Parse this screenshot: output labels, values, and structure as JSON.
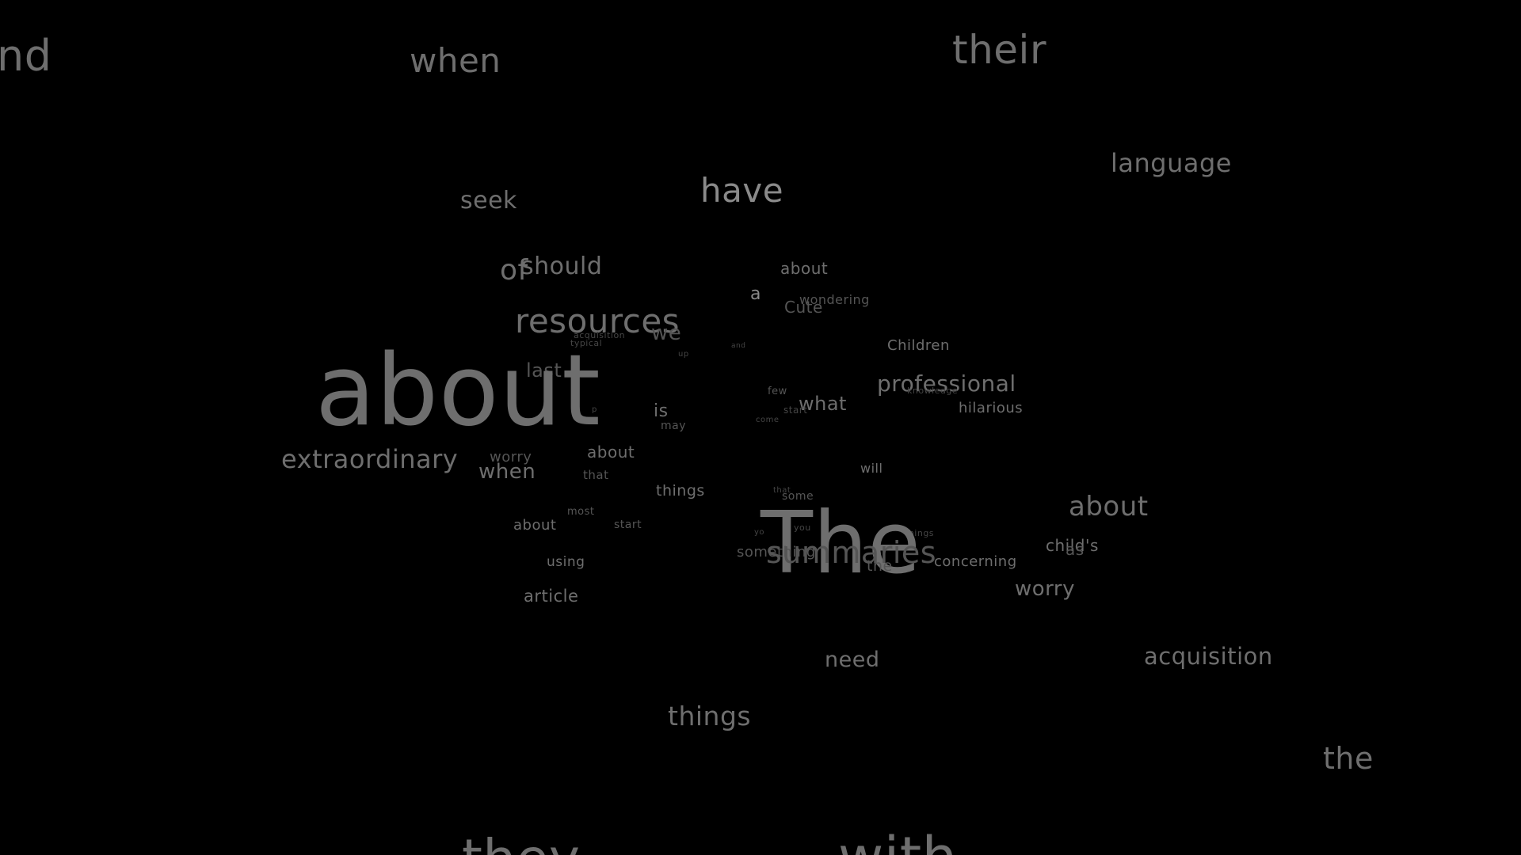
{
  "colors": {
    "background": "#000000",
    "bright": "#8a8a8a",
    "mid": "#6e6e6e",
    "dim": "#555555",
    "faint": "#454545"
  },
  "words": [
    {
      "text": "nd",
      "tone": "mid"
    },
    {
      "text": "when",
      "tone": "mid"
    },
    {
      "text": "their",
      "tone": "mid"
    },
    {
      "text": "language",
      "tone": "mid"
    },
    {
      "text": "seek",
      "tone": "mid"
    },
    {
      "text": "have",
      "tone": "bright"
    },
    {
      "text": "of",
      "tone": "mid"
    },
    {
      "text": "should",
      "tone": "mid"
    },
    {
      "text": "about",
      "tone": "mid"
    },
    {
      "text": "a",
      "tone": "bright"
    },
    {
      "text": "wondering",
      "tone": "dim"
    },
    {
      "text": "Cute",
      "tone": "dim"
    },
    {
      "text": "resources",
      "tone": "mid"
    },
    {
      "text": "we",
      "tone": "dim"
    },
    {
      "text": "acquisition",
      "tone": "faint"
    },
    {
      "text": "typical",
      "tone": "faint"
    },
    {
      "text": "up",
      "tone": "faint"
    },
    {
      "text": "and",
      "tone": "faint"
    },
    {
      "text": "Children",
      "tone": "mid"
    },
    {
      "text": "last",
      "tone": "dim"
    },
    {
      "text": "about",
      "tone": "mid"
    },
    {
      "text": "professional",
      "tone": "mid"
    },
    {
      "text": "knowledge",
      "tone": "faint"
    },
    {
      "text": "few",
      "tone": "dim"
    },
    {
      "text": "what",
      "tone": "mid"
    },
    {
      "text": "start",
      "tone": "faint"
    },
    {
      "text": "hilarious",
      "tone": "mid"
    },
    {
      "text": "is",
      "tone": "mid"
    },
    {
      "text": "may",
      "tone": "dim"
    },
    {
      "text": "come",
      "tone": "faint"
    },
    {
      "text": "p",
      "tone": "faint"
    },
    {
      "text": "extraordinary",
      "tone": "mid"
    },
    {
      "text": "worry",
      "tone": "dim"
    },
    {
      "text": "when",
      "tone": "mid"
    },
    {
      "text": "about",
      "tone": "mid"
    },
    {
      "text": "that",
      "tone": "dim"
    },
    {
      "text": "will",
      "tone": "mid"
    },
    {
      "text": "things",
      "tone": "mid"
    },
    {
      "text": "that",
      "tone": "faint"
    },
    {
      "text": "some",
      "tone": "dim"
    },
    {
      "text": "about",
      "tone": "mid"
    },
    {
      "text": "most",
      "tone": "dim"
    },
    {
      "text": "about",
      "tone": "mid"
    },
    {
      "text": "start",
      "tone": "dim"
    },
    {
      "text": "you",
      "tone": "faint"
    },
    {
      "text": "yo",
      "tone": "faint"
    },
    {
      "text": "things",
      "tone": "faint"
    },
    {
      "text": "The",
      "tone": "mid"
    },
    {
      "text": "summaries",
      "tone": "dim"
    },
    {
      "text": "something",
      "tone": "dim"
    },
    {
      "text": "the",
      "tone": "dim"
    },
    {
      "text": "child's",
      "tone": "mid"
    },
    {
      "text": "as",
      "tone": "dim"
    },
    {
      "text": "using",
      "tone": "mid"
    },
    {
      "text": "concerning",
      "tone": "mid"
    },
    {
      "text": "worry",
      "tone": "mid"
    },
    {
      "text": "article",
      "tone": "mid"
    },
    {
      "text": "need",
      "tone": "mid"
    },
    {
      "text": "acquisition",
      "tone": "mid"
    },
    {
      "text": "things",
      "tone": "mid"
    },
    {
      "text": "the",
      "tone": "mid"
    },
    {
      "text": "they",
      "tone": "mid"
    },
    {
      "text": "with",
      "tone": "mid"
    }
  ]
}
